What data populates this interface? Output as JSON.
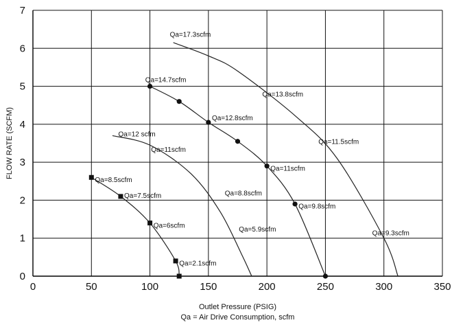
{
  "chart_data": {
    "type": "line",
    "title": "",
    "xlabel": "Outlet Pressure (PSIG)",
    "xlabel_sub": "Qa = Air Drive Consumption, scfm",
    "ylabel": "FLOW RATE (SCFM)",
    "xlim": [
      0,
      350
    ],
    "ylim": [
      0,
      7
    ],
    "x_ticks": [
      "0",
      "50",
      "100",
      "150",
      "200",
      "250",
      "300",
      "350"
    ],
    "y_ticks": [
      "0",
      "1",
      "2",
      "3",
      "4",
      "5",
      "6",
      "7"
    ],
    "grid": true,
    "legend": "none",
    "series": [
      {
        "line_color": "#333333",
        "marker": "square",
        "points": [
          [
            50,
            2.6
          ],
          [
            75,
            2.1
          ],
          [
            100,
            1.4
          ],
          [
            122,
            0.4
          ],
          [
            125,
            0.0
          ]
        ],
        "show_markers": [
          true,
          true,
          true,
          true,
          true
        ]
      },
      {
        "line_color": "#777777",
        "marker": "none",
        "points": [
          [
            68,
            3.7
          ],
          [
            100,
            3.45
          ],
          [
            135,
            2.7
          ],
          [
            160,
            1.7
          ],
          [
            178,
            0.6
          ],
          [
            187,
            0.0
          ]
        ],
        "show_markers": [
          false,
          false,
          false,
          false,
          false,
          false
        ]
      },
      {
        "line_color": "#222222",
        "marker": "circle",
        "points": [
          [
            100,
            5.0
          ],
          [
            125,
            4.6
          ],
          [
            150,
            4.05
          ],
          [
            175,
            3.55
          ],
          [
            200,
            2.9
          ],
          [
            224,
            1.9
          ],
          [
            250,
            0.0
          ]
        ],
        "show_markers": [
          true,
          true,
          true,
          true,
          true,
          true,
          true
        ]
      },
      {
        "line_color": "#555555",
        "marker": "none",
        "points": [
          [
            120,
            6.15
          ],
          [
            150,
            5.8
          ],
          [
            175,
            5.4
          ],
          [
            225,
            4.2
          ],
          [
            260,
            3.1
          ],
          [
            300,
            1.0
          ],
          [
            312,
            0.0
          ]
        ],
        "show_markers": [
          false,
          false,
          false,
          false,
          false,
          false,
          false
        ]
      }
    ],
    "annotations": [
      {
        "text": "Qa=8.5scfm",
        "x": 53,
        "y": 2.55
      },
      {
        "text": "Qa=7.5scfm",
        "x": 78,
        "y": 2.13
      },
      {
        "text": "Qa=6scfm",
        "x": 103,
        "y": 1.35
      },
      {
        "text": "Qa=2.1scfm",
        "x": 125,
        "y": 0.35
      },
      {
        "text": "Qa=12 scfm",
        "x": 73,
        "y": 3.75
      },
      {
        "text": "Qa=11scfm",
        "x": 101,
        "y": 3.35
      },
      {
        "text": "Qa=8.8scfm",
        "x": 164,
        "y": 2.2
      },
      {
        "text": "Qa=5.9scfm",
        "x": 176,
        "y": 1.25
      },
      {
        "text": "Qa=14.7scfm",
        "x": 96,
        "y": 5.18
      },
      {
        "text": "Qa=12.8scfm",
        "x": 153,
        "y": 4.18
      },
      {
        "text": "Qa=11scfm",
        "x": 203,
        "y": 2.85
      },
      {
        "text": "Qa=9.8scfm",
        "x": 227,
        "y": 1.85
      },
      {
        "text": "Qa=17.3scfm",
        "x": 117,
        "y": 6.38
      },
      {
        "text": "Qa=13.8scfm",
        "x": 196,
        "y": 4.8
      },
      {
        "text": "Qa=11.5scfm",
        "x": 244,
        "y": 3.55
      },
      {
        "text": "Qa=9.3scfm",
        "x": 290,
        "y": 1.15
      }
    ]
  }
}
